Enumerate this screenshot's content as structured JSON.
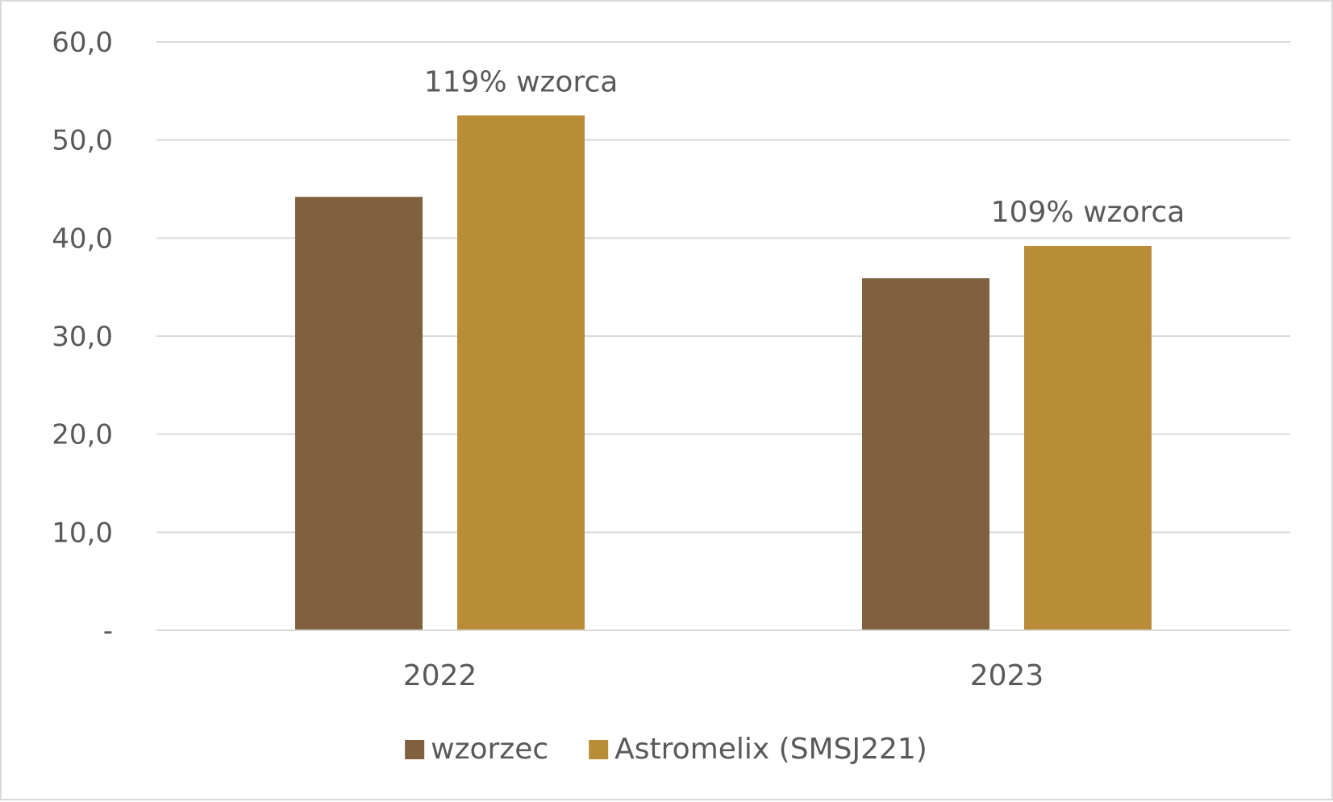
{
  "chart_data": {
    "type": "bar",
    "categories": [
      "2022",
      "2023"
    ],
    "series": [
      {
        "name": "wzorzec",
        "values": [
          44.2,
          35.9
        ],
        "color": "#7f6140"
      },
      {
        "name": "Astromelix (SMSJ221)",
        "values": [
          52.5,
          39.2
        ],
        "color": "#b98d37"
      }
    ],
    "annotations": [
      "119% wzorca",
      "109% wzorca"
    ],
    "y_ticks": [
      "-",
      "10,0",
      "20,0",
      "30,0",
      "40,0",
      "50,0",
      "60,0"
    ],
    "ylim": [
      0,
      60
    ],
    "grid": true,
    "legend": "bottom",
    "title": "",
    "xlabel": "",
    "ylabel": ""
  }
}
